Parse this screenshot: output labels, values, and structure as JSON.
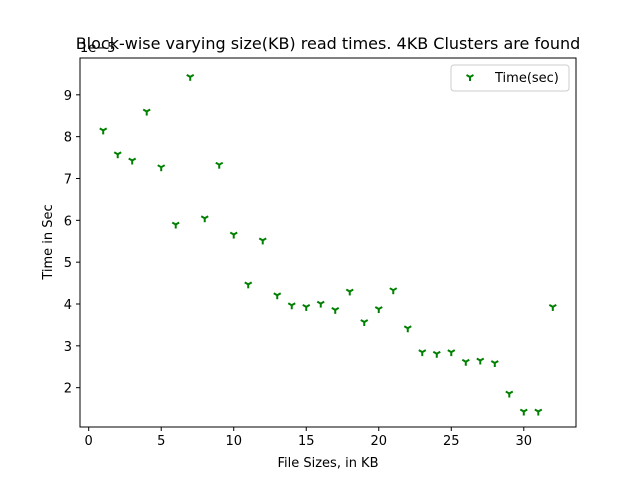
{
  "chart_data": {
    "type": "scatter",
    "title": "Block-wise varying size(KB) read times. 4KB Clusters are found",
    "xlabel": "File Sizes, in KB",
    "ylabel": "Time in Sec",
    "y_offset_label": "1e−5",
    "xlim": [
      -0.6,
      33.6
    ],
    "ylim": [
      1.06,
      9.88
    ],
    "x_ticks": [
      0,
      5,
      10,
      15,
      20,
      25,
      30
    ],
    "y_ticks": [
      2,
      3,
      4,
      5,
      6,
      7,
      8,
      9
    ],
    "grid": false,
    "legend_position": "upper-right",
    "series": [
      {
        "name": "Time(sec)",
        "color": "#008000",
        "marker": "tri_down",
        "x": [
          1,
          2,
          3,
          4,
          5,
          6,
          7,
          8,
          9,
          10,
          11,
          12,
          13,
          14,
          15,
          16,
          17,
          18,
          19,
          20,
          21,
          22,
          23,
          24,
          25,
          26,
          27,
          28,
          29,
          30,
          31,
          32
        ],
        "y": [
          8.15,
          7.58,
          7.43,
          8.6,
          7.27,
          5.9,
          9.43,
          6.05,
          7.33,
          5.66,
          4.47,
          5.52,
          4.21,
          3.97,
          3.93,
          4.01,
          3.86,
          4.3,
          3.57,
          3.88,
          4.33,
          3.42,
          2.85,
          2.81,
          2.85,
          2.62,
          2.65,
          2.59,
          1.86,
          1.43,
          1.43,
          3.93
        ]
      }
    ]
  }
}
